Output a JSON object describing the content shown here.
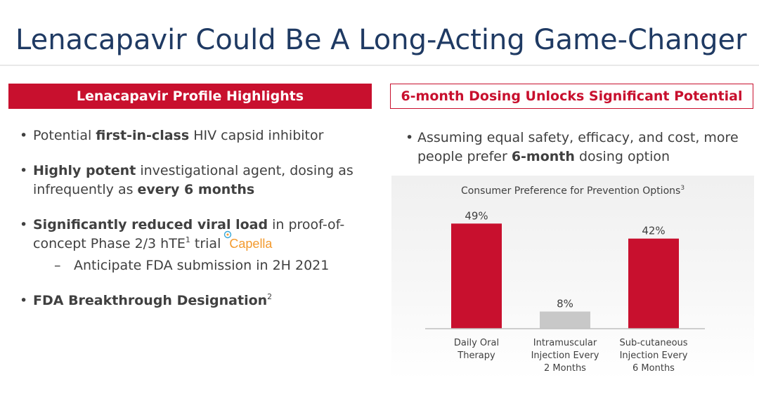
{
  "title": "Lenacapavir Could Be A Long-Acting Game-Changer",
  "left_panel": {
    "header": "Lenacapavir Profile Highlights",
    "b1_pre": "Potential ",
    "b1_bold": "first-in-class",
    "b1_post": " HIV capsid inhibitor",
    "b2_bold1": "Highly potent",
    "b2_mid": " investigational agent, dosing as infrequently as ",
    "b2_bold2": "every 6 months",
    "b3_bold": "Significantly reduced viral load",
    "b3_mid": " in proof-of-concept Phase 2/3 hTE",
    "b3_sup": "1",
    "b3_post": " trial",
    "b3_logo": "Capella",
    "b3_sub": "Anticipate FDA submission in 2H 2021",
    "b4_bold": "FDA Breakthrough Designation",
    "b4_sup": "2"
  },
  "right_panel": {
    "header": "6-month Dosing Unlocks Significant Potential",
    "bullet_pre": "Assuming equal safety, efficacy, and cost, more people prefer ",
    "bullet_bold": "6-month",
    "bullet_post": " dosing option"
  },
  "colors": {
    "accent": "#c8102e",
    "title": "#1f3a63",
    "bar_gray": "#c8c8c8",
    "text": "#404040"
  },
  "chart_data": {
    "type": "bar",
    "title": "Consumer Preference for Prevention Options",
    "title_sup": "3",
    "categories": [
      [
        "Daily Oral",
        "Therapy"
      ],
      [
        "Intramuscular",
        "Injection Every",
        "2 Months"
      ],
      [
        "Sub-cutaneous",
        "Injection Every",
        "6 Months"
      ]
    ],
    "values": [
      49,
      8,
      42
    ],
    "value_labels": [
      "49%",
      "8%",
      "42%"
    ],
    "bar_colors": [
      "#c8102e",
      "#c8c8c8",
      "#c8102e"
    ],
    "ylim": [
      0,
      55
    ],
    "grid": false,
    "xlabel": "",
    "ylabel": ""
  }
}
